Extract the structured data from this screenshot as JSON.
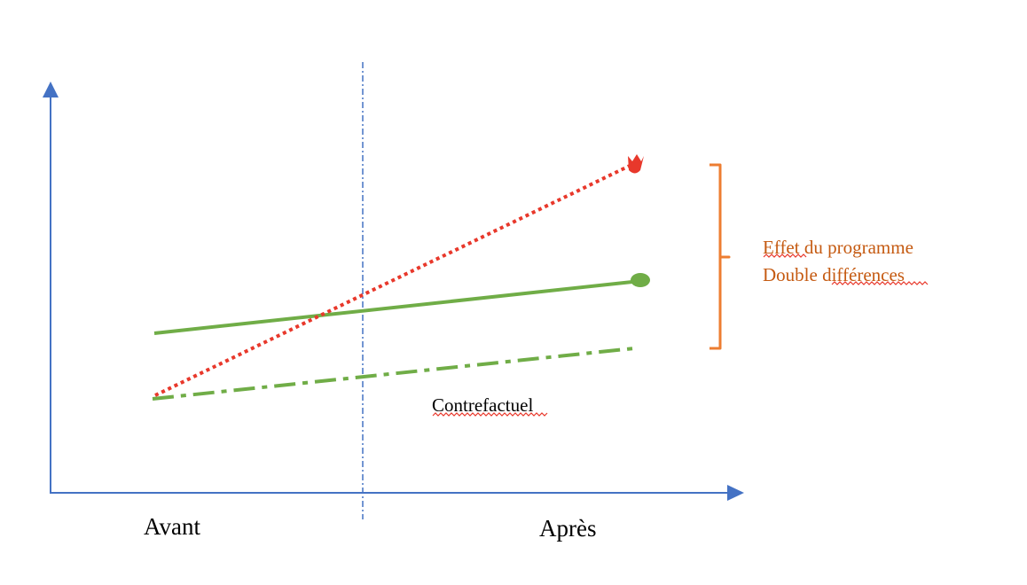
{
  "diagram": {
    "period_before": "Avant",
    "period_after": "Après",
    "counterfactual_label": "Contrefactuel",
    "effect_label_line1": "Effet du programme",
    "effect_label_line2": "Double différences"
  },
  "colors": {
    "axis": "#4472c4",
    "divider": "#4472c4",
    "treated": "#70ad47",
    "counterfactual": "#70ad47",
    "trend": "#e8382b",
    "brace": "#ed7d31",
    "effect_text": "#c55a11",
    "spellcheck": "#e8382b"
  }
}
